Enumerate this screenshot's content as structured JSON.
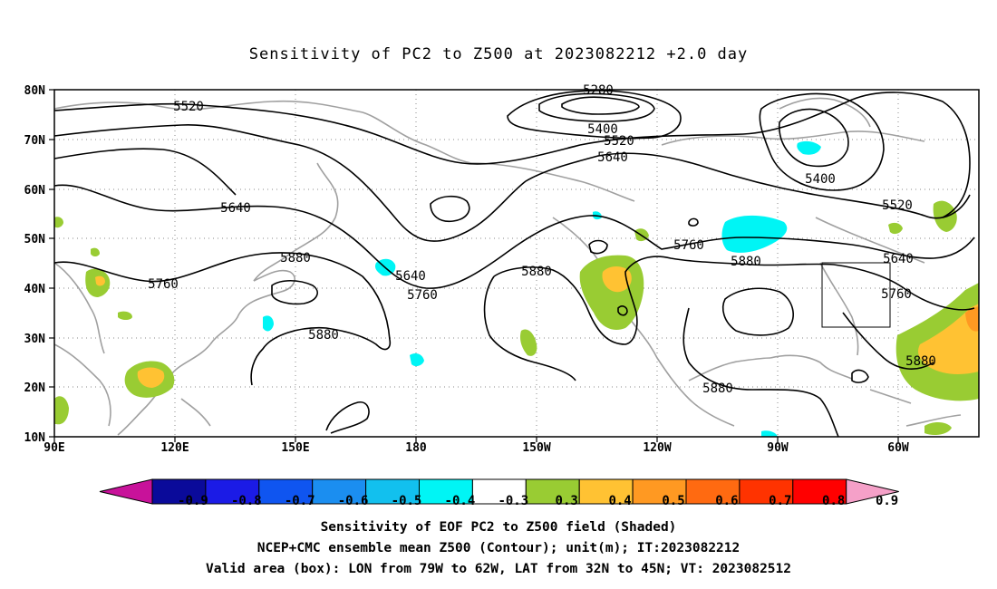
{
  "title": "Sensitivity of PC2 to Z500 at 2023082212 +2.0 day",
  "lat_labels": [
    "80N",
    "70N",
    "60N",
    "50N",
    "40N",
    "30N",
    "20N",
    "10N"
  ],
  "lon_labels": [
    "90E",
    "120E",
    "150E",
    "180",
    "150W",
    "120W",
    "90W",
    "60W"
  ],
  "contour_labels": {
    "c5280": "5280",
    "c5400a": "5400",
    "c5400b": "5400",
    "c5520a": "5520",
    "c5520b": "5520",
    "c5520c": "5520",
    "c5640a": "5640",
    "c5640b": "5640",
    "c5640c": "5640",
    "c5640d": "5640",
    "c5760a": "5760",
    "c5760b": "5760",
    "c5760c": "5760",
    "c5760d": "5760",
    "c5880a": "5880",
    "c5880b": "5880",
    "c5880c": "5880",
    "c5880d": "5880",
    "c5880e": "5880",
    "c5880f": "5880"
  },
  "colorbar": {
    "labels": [
      "-0.9",
      "-0.8",
      "-0.7",
      "-0.6",
      "-0.5",
      "-0.4",
      "-0.3",
      "0.3",
      "0.4",
      "0.5",
      "0.6",
      "0.7",
      "0.8",
      "0.9"
    ],
    "colors": [
      "#0a0a9a",
      "#1b1be6",
      "#0f55f0",
      "#1b8ef0",
      "#12c0ee",
      "#00f5f5",
      "#ffffff",
      "#99cc33",
      "#ffc233",
      "#ff9922",
      "#ff6a11",
      "#ff3300",
      "#ff0000"
    ],
    "low_end_color": "#c8129a",
    "high_end_color": "#f5a0c8"
  },
  "footer": {
    "line1": "Sensitivity of EOF PC2 to Z500 field (Shaded)",
    "line2": "NCEP+CMC ensemble mean Z500 (Contour); unit(m); IT:2023082212",
    "line3": "Valid area (box): LON from 79W to 62W, LAT from 32N to 45N; VT: 2023082512"
  },
  "valid_box": {
    "lon_min": "79W",
    "lon_max": "62W",
    "lat_min": "32N",
    "lat_max": "45N"
  }
}
